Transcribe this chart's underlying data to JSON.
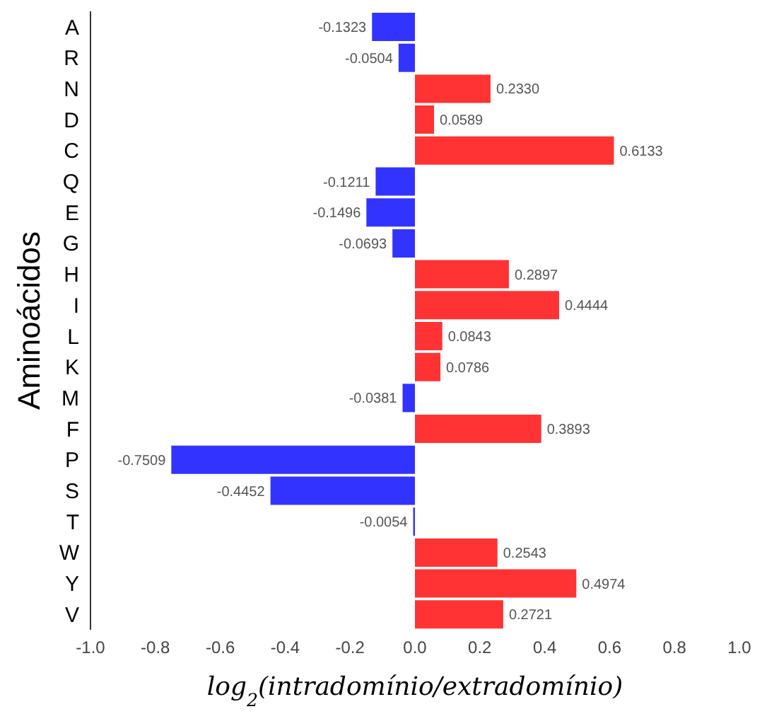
{
  "chart_data": {
    "type": "bar",
    "orientation": "horizontal",
    "xlabel": "log$_{2}$(intradomínio/extradomínio)",
    "ylabel": "Aminoácidos",
    "categories": [
      "A",
      "R",
      "N",
      "D",
      "C",
      "Q",
      "E",
      "G",
      "H",
      "I",
      "L",
      "K",
      "M",
      "F",
      "P",
      "S",
      "T",
      "W",
      "Y",
      "V"
    ],
    "values": [
      -0.1323,
      -0.0504,
      0.233,
      0.0589,
      0.6133,
      -0.1211,
      -0.1496,
      -0.0693,
      0.2897,
      0.4444,
      0.0843,
      0.0786,
      -0.0381,
      0.3893,
      -0.7509,
      -0.4452,
      -0.0054,
      0.2543,
      0.4974,
      0.2721
    ],
    "value_labels": [
      "-0.1323",
      "-0.0504",
      "0.2330",
      "0.0589",
      "0.6133",
      "-0.1211",
      "-0.1496",
      "-0.0693",
      "0.2897",
      "0.4444",
      "0.0843",
      "0.0786",
      "-0.0381",
      "0.3893",
      "-0.7509",
      "-0.4452",
      "-0.0054",
      "0.2543",
      "0.4974",
      "0.2721"
    ],
    "colors": [
      "#3333ff",
      "#3333ff",
      "#ff3333",
      "#ff3333",
      "#ff3333",
      "#3333ff",
      "#3333ff",
      "#3333ff",
      "#ff3333",
      "#ff3333",
      "#ff3333",
      "#ff3333",
      "#3333ff",
      "#ff3333",
      "#3333ff",
      "#3333ff",
      "#3333ff",
      "#ff3333",
      "#ff3333",
      "#ff3333"
    ],
    "xlim": [
      -1.0,
      1.0
    ],
    "xticks": [
      {
        "value": -1.0,
        "label": "-1.0"
      },
      {
        "value": -0.8,
        "label": "-0.8"
      },
      {
        "value": -0.6,
        "label": "-0.6"
      },
      {
        "value": -0.4,
        "label": "-0.4"
      },
      {
        "value": -0.2,
        "label": "-0.2"
      },
      {
        "value": 0.0,
        "label": "0.0"
      },
      {
        "value": 0.2,
        "label": "0.2"
      },
      {
        "value": 0.4,
        "label": "0.4"
      },
      {
        "value": 0.6,
        "label": "0.6"
      },
      {
        "value": 0.8,
        "label": "0.8"
      },
      {
        "value": 1.0,
        "label": "1.0"
      }
    ],
    "grid": false,
    "legend": false
  }
}
